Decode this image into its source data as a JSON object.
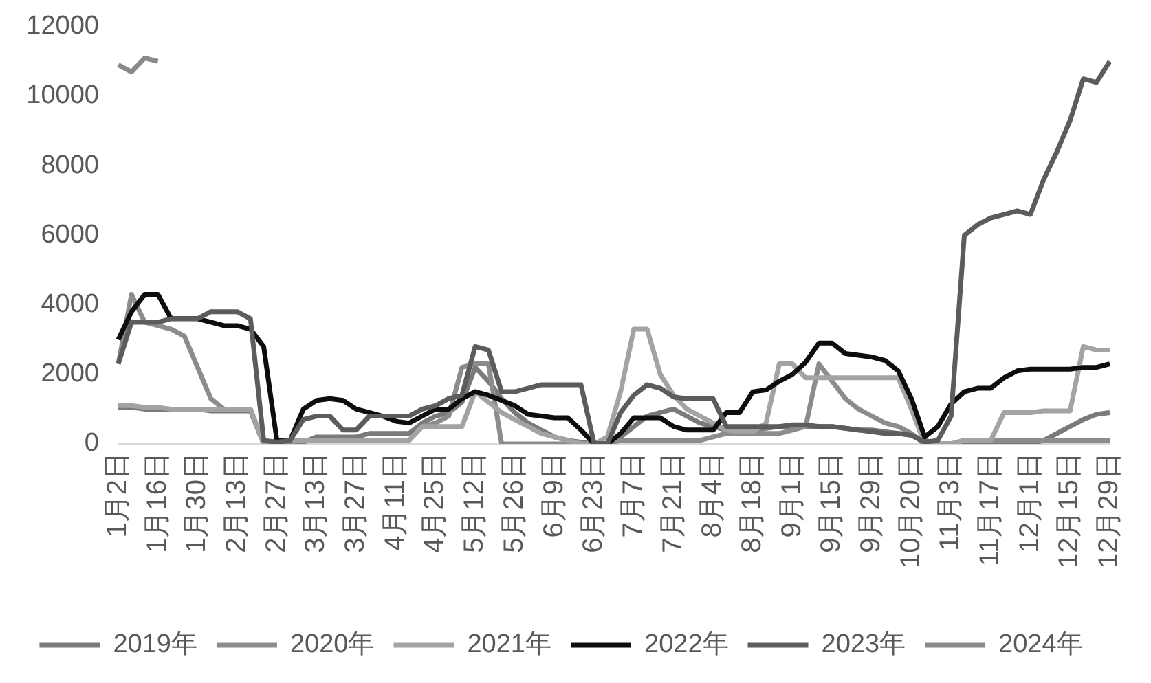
{
  "chart_data": {
    "type": "line",
    "categories": [
      "1月2日",
      null,
      null,
      "1月16日",
      null,
      null,
      "1月30日",
      null,
      null,
      "2月13日",
      null,
      null,
      "2月27日",
      null,
      null,
      "3月13日",
      null,
      null,
      "3月27日",
      null,
      null,
      "4月11日",
      null,
      null,
      "4月25日",
      null,
      null,
      "5月12日",
      null,
      null,
      "5月26日",
      null,
      null,
      "6月9日",
      null,
      null,
      "6月23日",
      null,
      null,
      "7月7日",
      null,
      null,
      "7月21日",
      null,
      null,
      "8月4日",
      null,
      null,
      "8月18日",
      null,
      null,
      "9月1日",
      null,
      null,
      "9月15日",
      null,
      null,
      "9月29日",
      null,
      null,
      "10月20日",
      null,
      null,
      "11月3日",
      null,
      null,
      "11月17日",
      null,
      null,
      "12月1日",
      null,
      null,
      "12月15日",
      null,
      null,
      "12月29日"
    ],
    "series": [
      {
        "name": "2019年",
        "color": "#7a7a7a",
        "values": [
          1050,
          1050,
          1000,
          1000,
          1000,
          1000,
          1000,
          950,
          950,
          950,
          950,
          0,
          50,
          50,
          50,
          200,
          200,
          200,
          200,
          300,
          300,
          300,
          300,
          600,
          800,
          900,
          1200,
          2200,
          1800,
          1300,
          900,
          600,
          400,
          200,
          100,
          50,
          0,
          0,
          200,
          500,
          800,
          900,
          1000,
          800,
          600,
          500,
          400,
          400,
          400,
          450,
          500,
          500,
          500,
          500,
          500,
          450,
          400,
          400,
          350,
          300,
          250,
          100,
          0,
          0,
          0,
          0,
          0,
          0,
          0,
          0,
          100,
          300,
          500,
          700,
          850,
          900
        ]
      },
      {
        "name": "2020年",
        "color": "#8c8c8c",
        "values": [
          2300,
          4300,
          3500,
          3400,
          3300,
          3100,
          2200,
          1300,
          1000,
          1000,
          1000,
          0,
          0,
          50,
          100,
          100,
          100,
          100,
          100,
          100,
          100,
          100,
          100,
          500,
          600,
          800,
          2200,
          2300,
          2300,
          0,
          0,
          0,
          0,
          0,
          0,
          0,
          0,
          0,
          100,
          100,
          100,
          100,
          100,
          100,
          100,
          200,
          300,
          300,
          300,
          300,
          300,
          400,
          500,
          2300,
          1800,
          1300,
          1000,
          800,
          600,
          500,
          300,
          0,
          0,
          0,
          100,
          100,
          100,
          100,
          100,
          100,
          100,
          100,
          100,
          100,
          100,
          100
        ]
      },
      {
        "name": "2021年",
        "color": "#a3a3a3",
        "values": [
          1100,
          1100,
          1050,
          1050,
          1000,
          1000,
          1000,
          1000,
          1000,
          1000,
          1000,
          0,
          100,
          100,
          100,
          100,
          100,
          100,
          100,
          100,
          100,
          100,
          100,
          500,
          500,
          500,
          500,
          1500,
          1200,
          900,
          700,
          500,
          300,
          200,
          100,
          0,
          0,
          200,
          1500,
          3300,
          3300,
          2000,
          1400,
          1000,
          800,
          600,
          400,
          350,
          350,
          600,
          2300,
          2300,
          1900,
          1900,
          1900,
          1900,
          1900,
          1900,
          1900,
          1900,
          1000,
          0,
          0,
          0,
          100,
          100,
          100,
          900,
          900,
          900,
          950,
          950,
          950,
          2800,
          2700,
          2700
        ]
      },
      {
        "name": "2022年",
        "color": "#0d0d0d",
        "values": [
          3000,
          3800,
          4300,
          4300,
          3600,
          3600,
          3600,
          3500,
          3400,
          3400,
          3300,
          2800,
          100,
          100,
          1000,
          1250,
          1300,
          1250,
          1000,
          900,
          800,
          650,
          600,
          800,
          1000,
          1000,
          1300,
          1500,
          1400,
          1250,
          1100,
          850,
          800,
          750,
          750,
          400,
          0,
          0,
          300,
          750,
          750,
          750,
          500,
          400,
          400,
          400,
          900,
          900,
          1500,
          1550,
          1800,
          2000,
          2350,
          2900,
          2900,
          2600,
          2550,
          2500,
          2400,
          2100,
          1300,
          200,
          500,
          1150,
          1500,
          1600,
          1600,
          1900,
          2100,
          2150,
          2150,
          2150,
          2150,
          2200,
          2200,
          2300
        ]
      },
      {
        "name": "2023年",
        "color": "#5c5c5c",
        "values": [
          2300,
          3500,
          3500,
          3500,
          3600,
          3600,
          3600,
          3800,
          3800,
          3800,
          3600,
          100,
          50,
          100,
          700,
          800,
          800,
          400,
          400,
          800,
          800,
          800,
          800,
          1000,
          1100,
          1300,
          1400,
          2800,
          2700,
          1500,
          1500,
          1600,
          1700,
          1700,
          1700,
          1700,
          0,
          0,
          900,
          1400,
          1700,
          1600,
          1350,
          1300,
          1300,
          1300,
          500,
          500,
          500,
          500,
          500,
          550,
          550,
          500,
          500,
          450,
          400,
          350,
          300,
          300,
          250,
          50,
          100,
          800,
          6000,
          6300,
          6500,
          6600,
          6700,
          6600,
          7600,
          8400,
          9300,
          10500,
          10400,
          11000
        ]
      },
      {
        "name": "2024年",
        "color": "#8a8a8a",
        "values": [
          10900,
          10700,
          11100,
          11000,
          null,
          null,
          null,
          null,
          null,
          null,
          null,
          null,
          null,
          null,
          null,
          null,
          null,
          null,
          null,
          null,
          null,
          null,
          null,
          null,
          null,
          null,
          null,
          null,
          null,
          null,
          null,
          null,
          null,
          null,
          null,
          null,
          null,
          null,
          null,
          null,
          null,
          null,
          null,
          null,
          null,
          null,
          null,
          null,
          null,
          null,
          null,
          null,
          null,
          null,
          null,
          null,
          null,
          null,
          null,
          null,
          null,
          null,
          null,
          null,
          null,
          null,
          null,
          null,
          null,
          null,
          null,
          null,
          null,
          null,
          null,
          null
        ]
      }
    ],
    "ylim": [
      0,
      12000
    ],
    "yticks": [
      0,
      2000,
      4000,
      6000,
      8000,
      10000,
      12000
    ],
    "legend": "bottom"
  }
}
